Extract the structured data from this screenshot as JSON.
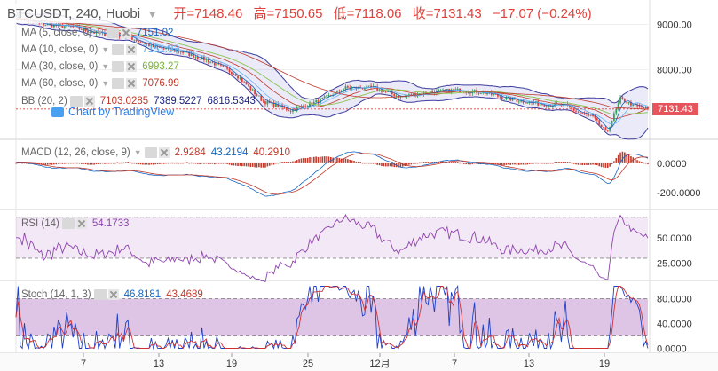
{
  "header": {
    "symbol": "BTCUSDT",
    "interval": "240",
    "exchange": "Huobi",
    "open_label": "开=7148.46",
    "high_label": "高=7150.65",
    "low_label": "低=7118.06",
    "close_label": "收=7131.43",
    "change_label": "−17.07 (−0.24%)"
  },
  "indicators": {
    "ma5": {
      "label": "MA (5, close, 0)",
      "value": "7151.02",
      "color": "#1565c0"
    },
    "ma10": {
      "label": "MA (10, close, 0)",
      "value": "7151.93",
      "color": "#64b5f6"
    },
    "ma30": {
      "label": "MA (30, close, 0)",
      "value": "6993.27",
      "color": "#8bc34a"
    },
    "ma60": {
      "label": "MA (60, close, 0)",
      "value": "7076.99",
      "color": "#c0392b"
    },
    "bb": {
      "label": "BB (20, 2)",
      "basis": "7103.0285",
      "upper": "7389.5227",
      "lower": "6816.5343"
    },
    "macd": {
      "label": "MACD (12, 26, close, 9)",
      "hist": "2.9284",
      "macd": "43.2194",
      "signal": "40.2910"
    },
    "rsi": {
      "label": "RSI (14)",
      "value": "54.1733"
    },
    "stoch": {
      "label": "Stoch (14, 1, 3)",
      "k": "46.8181",
      "d": "43.4689"
    }
  },
  "watermark": "Chart by TradingView",
  "last_price_label": "7131.43",
  "chart_data": [
    {
      "type": "line",
      "name": "price",
      "y_ticks": [
        8000,
        9000
      ],
      "y_tick_labels": [
        "8000.00",
        "9000.00"
      ],
      "ylim": [
        6500,
        9500
      ],
      "x_ticks": [
        "7",
        "13",
        "19",
        "25",
        "12月",
        "7",
        "13",
        "19"
      ],
      "anchors_x_day": [
        5,
        7,
        9,
        11,
        13,
        15,
        17,
        19,
        21,
        23,
        24,
        25,
        27,
        29,
        31,
        33,
        35,
        37,
        39,
        41,
        43,
        45,
        46,
        47,
        48,
        49,
        50,
        51
      ],
      "anchors_close": [
        9150,
        9000,
        8950,
        8800,
        8750,
        8500,
        8400,
        8200,
        7900,
        7300,
        7200,
        7100,
        7300,
        7600,
        7600,
        7400,
        7500,
        7550,
        7500,
        7350,
        7250,
        7200,
        7050,
        6950,
        6600,
        7350,
        7200,
        7131
      ]
    },
    {
      "type": "bar",
      "name": "MACD",
      "y_ticks": [
        0,
        -200
      ],
      "y_tick_labels": [
        "0.0000",
        "-200.0000"
      ]
    },
    {
      "type": "line",
      "name": "RSI",
      "y_ticks": [
        25,
        50
      ],
      "y_tick_labels": [
        "25.0000",
        "50.0000"
      ],
      "bands": [
        30,
        70
      ],
      "ylim": [
        10,
        75
      ]
    },
    {
      "type": "line",
      "name": "Stoch",
      "y_ticks": [
        0,
        40,
        80
      ],
      "y_tick_labels": [
        "0.0000",
        "40.0000",
        "80.0000"
      ],
      "bands": [
        20,
        80
      ],
      "ylim": [
        -5,
        105
      ]
    }
  ]
}
